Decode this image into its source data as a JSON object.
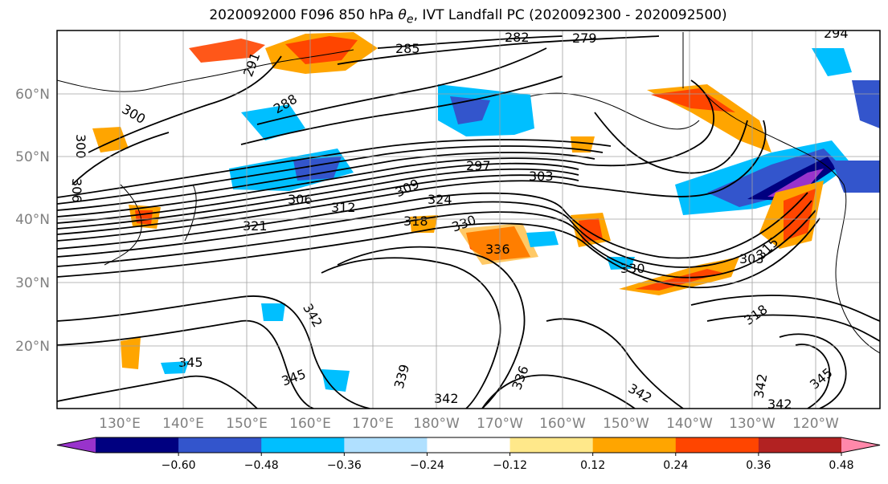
{
  "title": {
    "prefix": "2020092000 F096 850 hPa ",
    "symbol": "θ",
    "symbol_sub": "e",
    "suffix": ", IVT Landfall PC (2020092300 - 2020092500)"
  },
  "map_data": {
    "type": "contour_map",
    "lat_ticks": [
      "20°N",
      "30°N",
      "40°N",
      "50°N",
      "60°N"
    ],
    "lat_values": [
      20,
      30,
      40,
      50,
      60
    ],
    "lon_ticks": [
      "130°E",
      "140°E",
      "150°E",
      "160°E",
      "170°E",
      "180°W",
      "170°W",
      "160°W",
      "150°W",
      "140°W",
      "130°W",
      "120°W"
    ],
    "lon_range": [
      120,
      250
    ],
    "lat_range": [
      10,
      70
    ],
    "contour_labels": [
      "282",
      "279",
      "294",
      "285",
      "291",
      "288",
      "300",
      "303",
      "297",
      "306",
      "309",
      "303",
      "312",
      "324",
      "321",
      "318",
      "330",
      "336",
      "330",
      "315",
      "342",
      "345",
      "345",
      "339",
      "342",
      "336",
      "342",
      "318",
      "345",
      "342",
      "342",
      "300",
      "306"
    ]
  },
  "colorbar": {
    "colors": [
      "#9933cc",
      "#000080",
      "#3355cc",
      "#00bfff",
      "#b0e0ff",
      "#ffffff",
      "#ffe88a",
      "#ffa500",
      "#ff4500",
      "#b22222",
      "#ff88aa"
    ],
    "tick_labels": [
      "−0.60",
      "−0.48",
      "−0.36",
      "−0.24",
      "−0.12",
      "0.12",
      "0.24",
      "0.36",
      "0.48",
      "0.60"
    ]
  }
}
